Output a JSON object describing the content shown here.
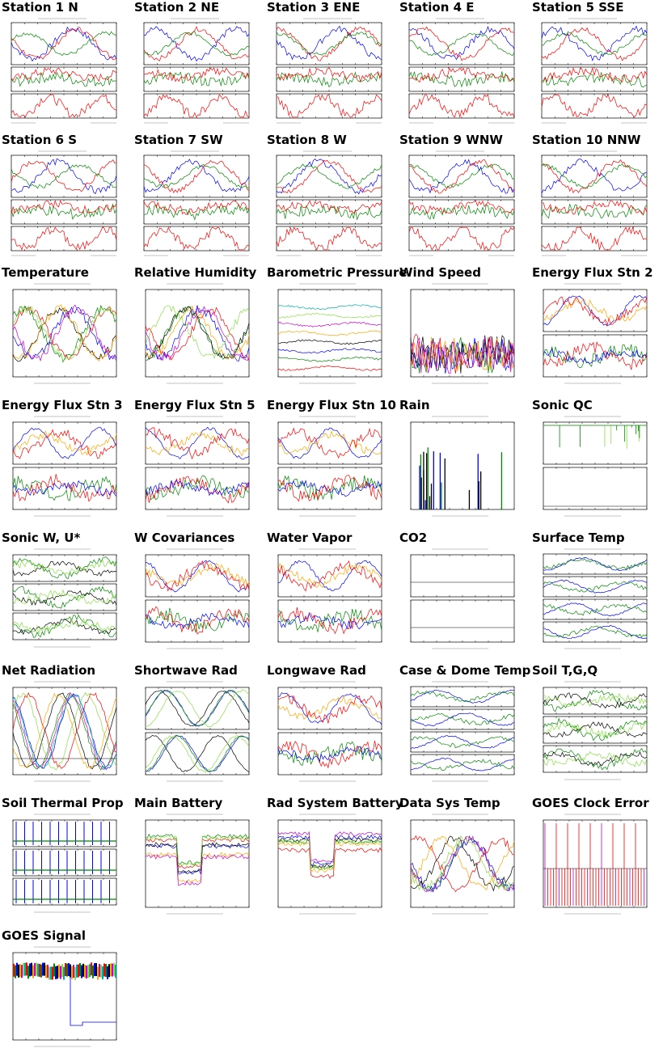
{
  "page": {
    "title": ""
  },
  "tiles": [
    {
      "label": "Station 1 N",
      "kind": "station"
    },
    {
      "label": "Station 2 NE",
      "kind": "station"
    },
    {
      "label": "Station 3 ENE",
      "kind": "station"
    },
    {
      "label": "Station 4 E",
      "kind": "station"
    },
    {
      "label": "Station 5 SSE",
      "kind": "station"
    },
    {
      "label": "Station 6 S",
      "kind": "station"
    },
    {
      "label": "Station 7 SW",
      "kind": "station"
    },
    {
      "label": "Station 8 W",
      "kind": "station"
    },
    {
      "label": "Station 9 WNW",
      "kind": "station"
    },
    {
      "label": "Station 10 NNW",
      "kind": "station"
    },
    {
      "label": "Temperature",
      "kind": "multiline"
    },
    {
      "label": "Relative Humidity",
      "kind": "multiline"
    },
    {
      "label": "Barometric Pressure",
      "kind": "flatlines"
    },
    {
      "label": "Wind Speed",
      "kind": "noisy"
    },
    {
      "label": "Energy Flux Stn 2",
      "kind": "twopanel"
    },
    {
      "label": "Energy Flux Stn 3",
      "kind": "twopanel"
    },
    {
      "label": "Energy Flux Stn 5",
      "kind": "twopanel"
    },
    {
      "label": "Energy Flux Stn 10",
      "kind": "twopanel"
    },
    {
      "label": "Rain",
      "kind": "bars"
    },
    {
      "label": "Sonic QC",
      "kind": "twopanel-sparse"
    },
    {
      "label": "Sonic W, U*",
      "kind": "threepanel"
    },
    {
      "label": "W Covariances",
      "kind": "twopanel"
    },
    {
      "label": "Water Vapor",
      "kind": "twopanel"
    },
    {
      "label": "CO2",
      "kind": "empty2"
    },
    {
      "label": "Surface Temp",
      "kind": "fourpanel"
    },
    {
      "label": "Net Radiation",
      "kind": "diurnal"
    },
    {
      "label": "Shortwave Rad",
      "kind": "diurnal2"
    },
    {
      "label": "Longwave Rad",
      "kind": "twopanel"
    },
    {
      "label": "Case & Dome Temp",
      "kind": "fourpanel"
    },
    {
      "label": "Soil T,G,Q",
      "kind": "threepanel"
    },
    {
      "label": "Soil Thermal Prop",
      "kind": "spikes"
    },
    {
      "label": "Main Battery",
      "kind": "battery"
    },
    {
      "label": "Rad System Battery",
      "kind": "battery"
    },
    {
      "label": "Data Sys Temp",
      "kind": "multiline"
    },
    {
      "label": "GOES Clock Error",
      "kind": "redbars"
    },
    {
      "label": "GOES Signal",
      "kind": "signal"
    }
  ],
  "colors": {
    "title": "#000000",
    "series": [
      "#ff0000",
      "#008800",
      "#0000ff",
      "#000000",
      "#ffa500",
      "#cc00cc",
      "#88dd44",
      "#00aaaa"
    ]
  }
}
